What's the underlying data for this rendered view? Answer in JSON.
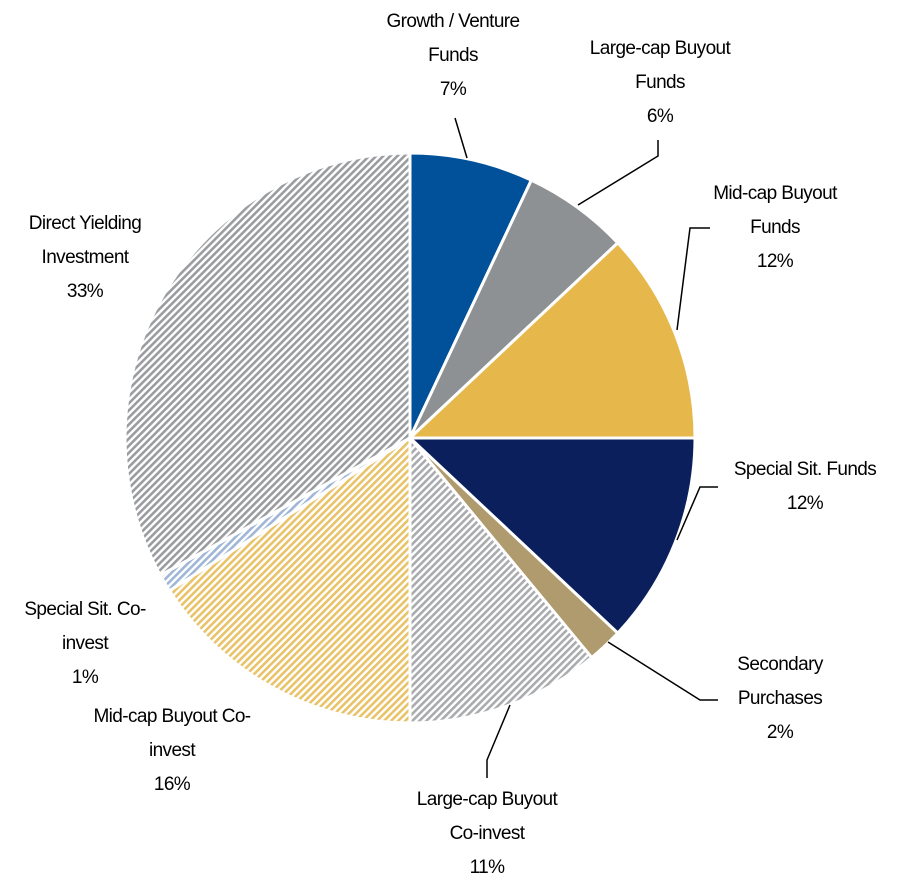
{
  "chart_data": {
    "type": "pie",
    "categories": [
      "Growth / Venture Funds",
      "Large-cap Buyout Funds",
      "Mid-cap Buyout Funds",
      "Special Sit. Funds",
      "Secondary Purchases",
      "Large-cap Buyout Co-invest",
      "Mid-cap Buyout Co-invest",
      "Special Sit. Co-invest",
      "Direct Yielding Investment"
    ],
    "values": [
      7,
      6,
      12,
      12,
      2,
      11,
      16,
      1,
      33
    ],
    "value_labels": [
      "7%",
      "6%",
      "12%",
      "12%",
      "2%",
      "11%",
      "16%",
      "1%",
      "33%"
    ],
    "colors": [
      "#00509a",
      "#8e9194",
      "#e6b84c",
      "#0a1f5c",
      "#b09b6e",
      "#a9abae",
      "#e8c36a",
      "#9fb6d6",
      "#9a9c9f"
    ],
    "hatched": [
      false,
      false,
      false,
      false,
      false,
      true,
      true,
      true,
      true
    ]
  }
}
